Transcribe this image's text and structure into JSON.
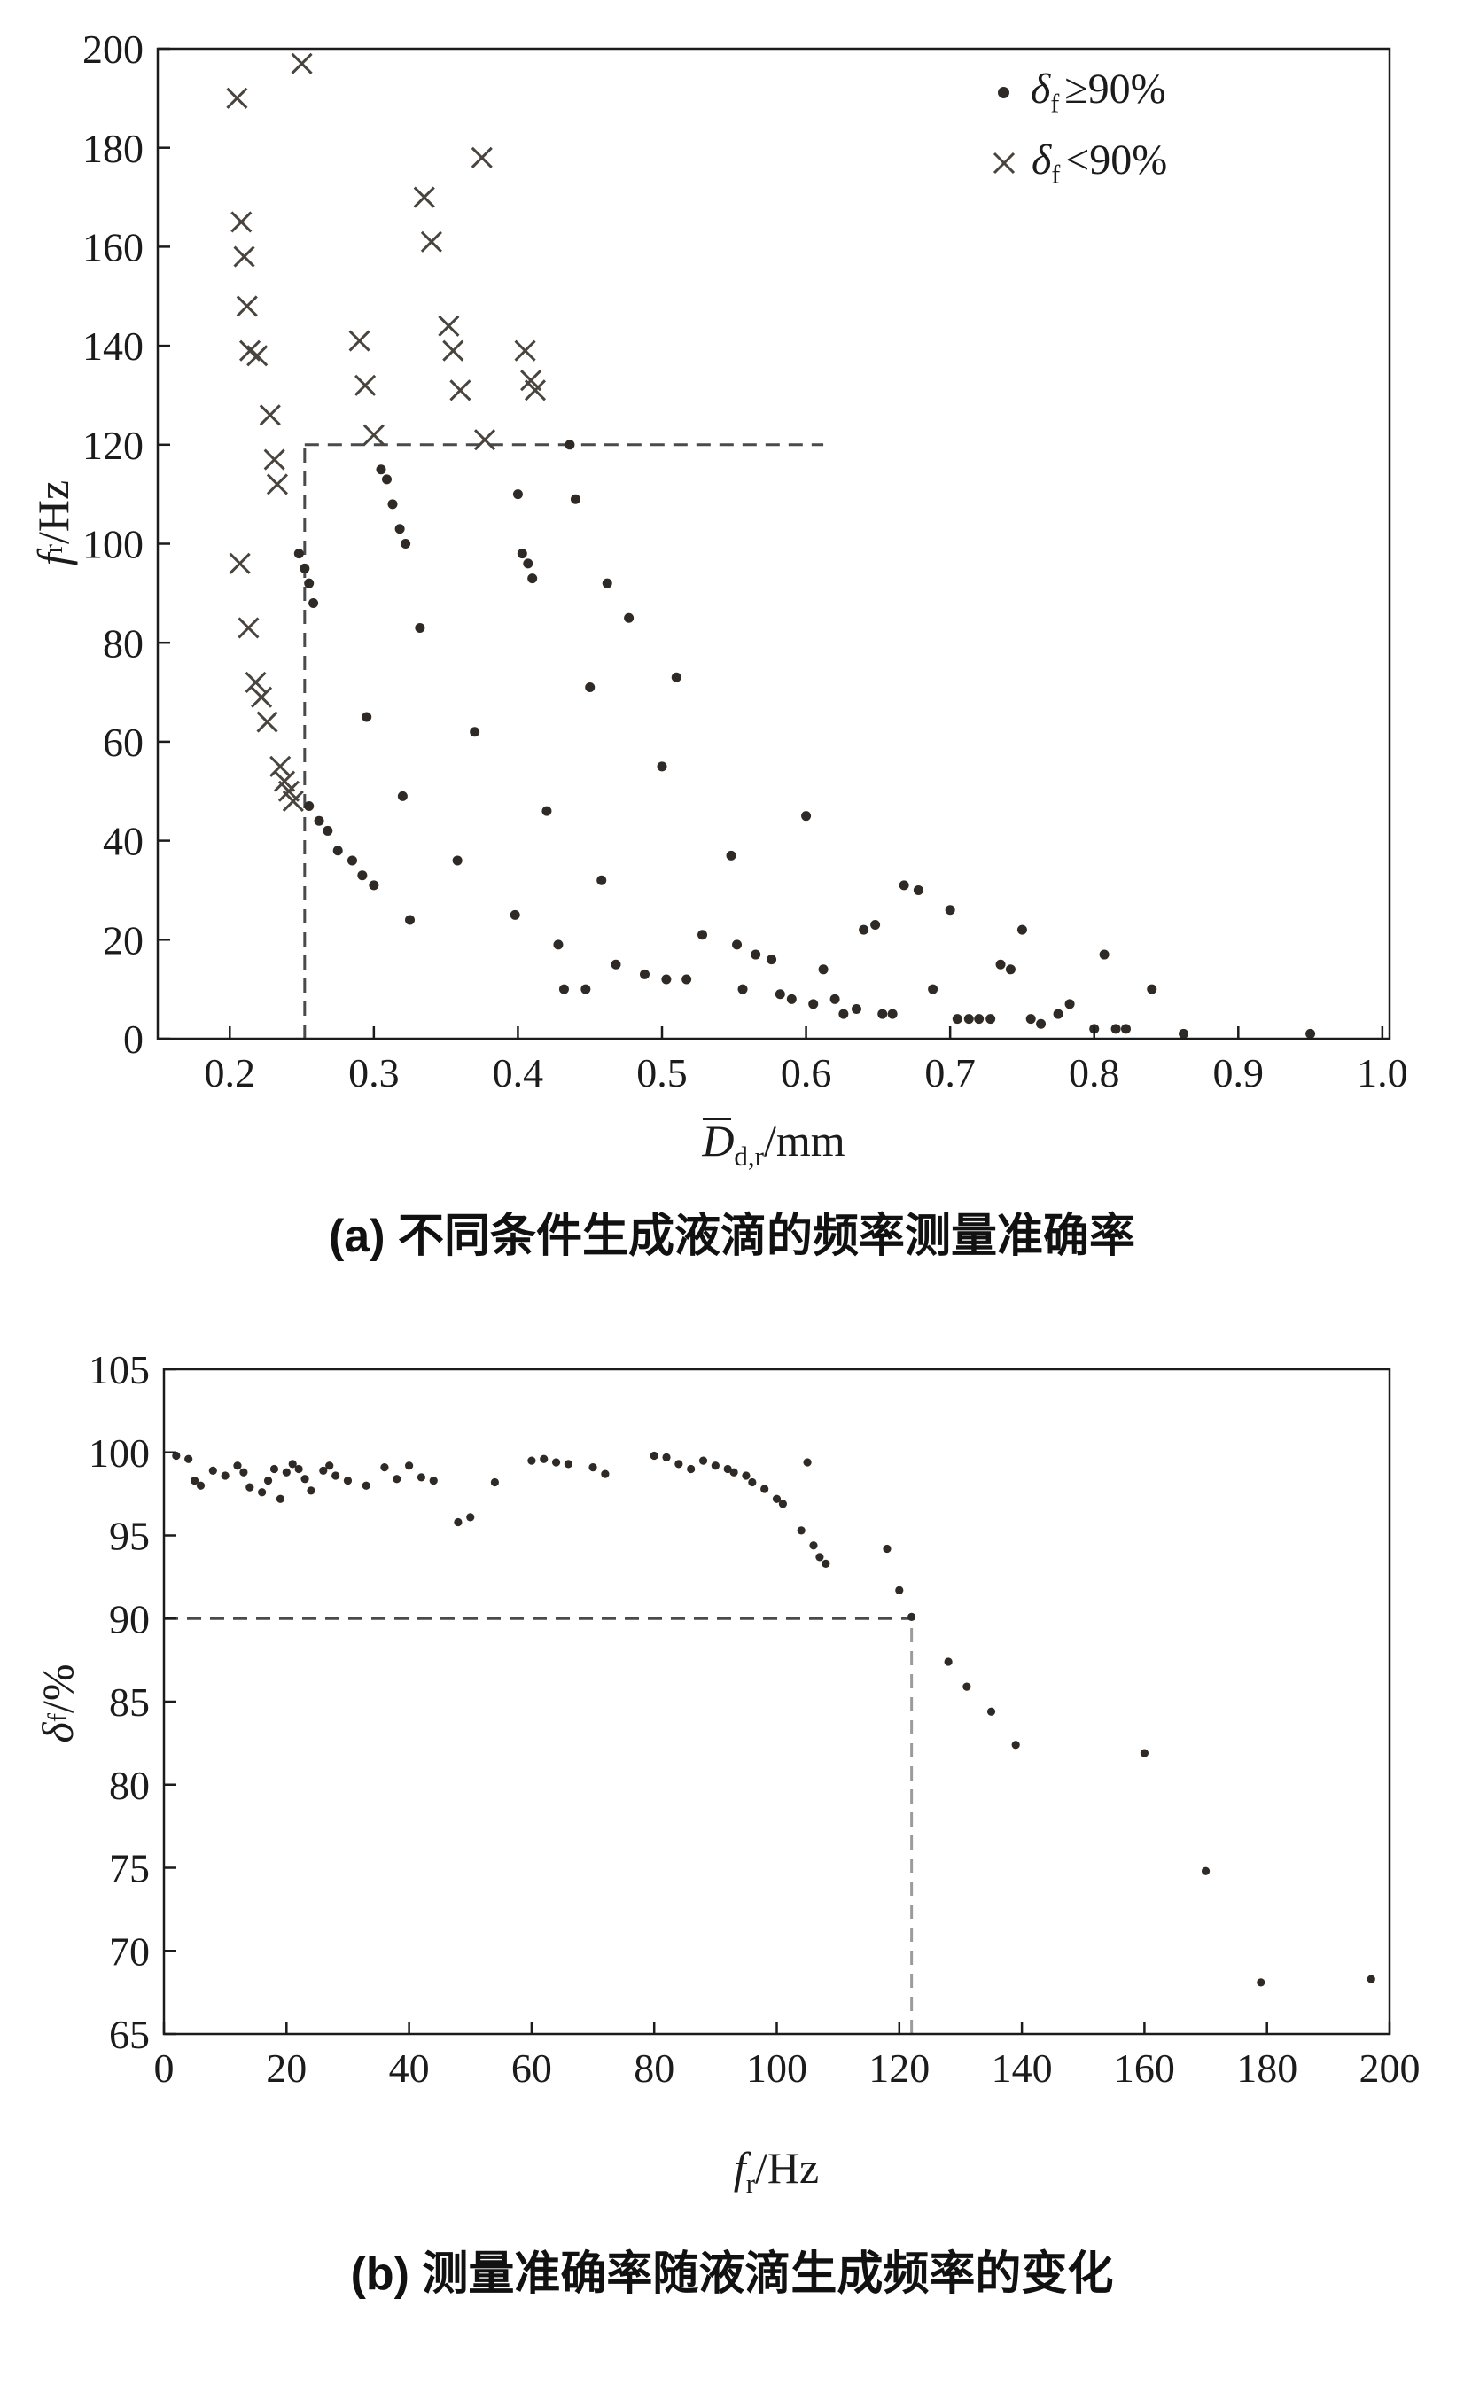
{
  "page": {
    "background": "#ffffff",
    "text_color": "#1b1b1b"
  },
  "chart_data": [
    {
      "id": "chart-a",
      "type": "scatter",
      "caption": "(a) 不同条件生成液滴的频率测量准确率",
      "xlabel": {
        "main": "D",
        "sub": "d,r",
        "unit": "/mm",
        "overbar": true
      },
      "ylabel": {
        "main": "f",
        "sub": "r",
        "unit": "/Hz"
      },
      "xlim": [
        0.15,
        1.005
      ],
      "ylim": [
        0,
        200
      ],
      "xticks": [
        0.2,
        0.3,
        0.4,
        0.5,
        0.6,
        0.7,
        0.8,
        0.9,
        1.0
      ],
      "xtick_labels": [
        "0.2",
        "0.3",
        "0.4",
        "0.5",
        "0.6",
        "0.7",
        "0.8",
        "0.9",
        "1.0"
      ],
      "yticks": [
        0,
        20,
        40,
        60,
        80,
        100,
        120,
        140,
        160,
        180,
        200
      ],
      "ytick_labels": [
        "0",
        "20",
        "40",
        "60",
        "80",
        "100",
        "120",
        "140",
        "160",
        "180",
        "200"
      ],
      "grid": false,
      "legend_position": "top-right",
      "legend": [
        {
          "marker": "dot",
          "sym": "δ",
          "sub": "f",
          "rest": "≥90%"
        },
        {
          "marker": "cross",
          "sym": "δ",
          "sub": "f",
          "rest": "<90%"
        }
      ],
      "series": [
        {
          "name": "delta_f_ge_90",
          "marker": "dot",
          "color": "#2f2a25",
          "points": [
            [
              0.248,
              98
            ],
            [
              0.252,
              95
            ],
            [
              0.255,
              92
            ],
            [
              0.258,
              88
            ],
            [
              0.255,
              47
            ],
            [
              0.262,
              44
            ],
            [
              0.268,
              42
            ],
            [
              0.275,
              38
            ],
            [
              0.285,
              36
            ],
            [
              0.292,
              33
            ],
            [
              0.3,
              31
            ],
            [
              0.295,
              65
            ],
            [
              0.305,
              115
            ],
            [
              0.309,
              113
            ],
            [
              0.313,
              108
            ],
            [
              0.318,
              103
            ],
            [
              0.322,
              100
            ],
            [
              0.32,
              49
            ],
            [
              0.325,
              24
            ],
            [
              0.332,
              83
            ],
            [
              0.358,
              36
            ],
            [
              0.37,
              62
            ],
            [
              0.398,
              25
            ],
            [
              0.4,
              110
            ],
            [
              0.403,
              98
            ],
            [
              0.407,
              96
            ],
            [
              0.41,
              93
            ],
            [
              0.42,
              46
            ],
            [
              0.428,
              19
            ],
            [
              0.432,
              10
            ],
            [
              0.436,
              120
            ],
            [
              0.44,
              109
            ],
            [
              0.447,
              10
            ],
            [
              0.45,
              71
            ],
            [
              0.458,
              32
            ],
            [
              0.462,
              92
            ],
            [
              0.468,
              15
            ],
            [
              0.477,
              85
            ],
            [
              0.488,
              13
            ],
            [
              0.5,
              55
            ],
            [
              0.503,
              12
            ],
            [
              0.51,
              73
            ],
            [
              0.517,
              12
            ],
            [
              0.528,
              21
            ],
            [
              0.548,
              37
            ],
            [
              0.552,
              19
            ],
            [
              0.556,
              10
            ],
            [
              0.565,
              17
            ],
            [
              0.576,
              16
            ],
            [
              0.582,
              9
            ],
            [
              0.59,
              8
            ],
            [
              0.6,
              45
            ],
            [
              0.605,
              7
            ],
            [
              0.612,
              14
            ],
            [
              0.62,
              8
            ],
            [
              0.626,
              5
            ],
            [
              0.635,
              6
            ],
            [
              0.64,
              22
            ],
            [
              0.648,
              23
            ],
            [
              0.653,
              5
            ],
            [
              0.66,
              5
            ],
            [
              0.668,
              31
            ],
            [
              0.678,
              30
            ],
            [
              0.688,
              10
            ],
            [
              0.7,
              26
            ],
            [
              0.705,
              4
            ],
            [
              0.713,
              4
            ],
            [
              0.72,
              4
            ],
            [
              0.728,
              4
            ],
            [
              0.735,
              15
            ],
            [
              0.742,
              14
            ],
            [
              0.75,
              22
            ],
            [
              0.756,
              4
            ],
            [
              0.763,
              3
            ],
            [
              0.775,
              5
            ],
            [
              0.783,
              7
            ],
            [
              0.8,
              2
            ],
            [
              0.807,
              17
            ],
            [
              0.815,
              2
            ],
            [
              0.822,
              2
            ],
            [
              0.84,
              10
            ],
            [
              0.862,
              1
            ],
            [
              0.95,
              1
            ]
          ]
        },
        {
          "name": "delta_f_lt_90",
          "marker": "cross",
          "color": "#4a443e",
          "points": [
            [
              0.205,
              190
            ],
            [
              0.208,
              165
            ],
            [
              0.21,
              158
            ],
            [
              0.212,
              148
            ],
            [
              0.207,
              96
            ],
            [
              0.213,
              83
            ],
            [
              0.214,
              139
            ],
            [
              0.219,
              138
            ],
            [
              0.218,
              72
            ],
            [
              0.222,
              69
            ],
            [
              0.226,
              64
            ],
            [
              0.228,
              126
            ],
            [
              0.231,
              117
            ],
            [
              0.233,
              112
            ],
            [
              0.235,
              55
            ],
            [
              0.238,
              52
            ],
            [
              0.241,
              50
            ],
            [
              0.244,
              48
            ],
            [
              0.25,
              197
            ],
            [
              0.29,
              141
            ],
            [
              0.294,
              132
            ],
            [
              0.3,
              122
            ],
            [
              0.335,
              170
            ],
            [
              0.34,
              161
            ],
            [
              0.352,
              144
            ],
            [
              0.355,
              139
            ],
            [
              0.36,
              131
            ],
            [
              0.375,
              178
            ],
            [
              0.377,
              121
            ],
            [
              0.405,
              139
            ],
            [
              0.409,
              133
            ],
            [
              0.412,
              131
            ]
          ]
        }
      ],
      "dashed_lines": [
        {
          "from": [
            0.252,
            120
          ],
          "to": [
            0.612,
            120
          ],
          "color": "#4a4a4a"
        },
        {
          "from": [
            0.252,
            0
          ],
          "to": [
            0.252,
            120
          ],
          "color": "#4a4a4a"
        }
      ]
    },
    {
      "id": "chart-b",
      "type": "scatter",
      "caption": "(b) 测量准确率随液滴生成频率的变化",
      "xlabel": {
        "main": "f",
        "sub": "r",
        "unit": "/Hz"
      },
      "ylabel": {
        "main": "δ",
        "sub": "f",
        "unit": "/%"
      },
      "xlim": [
        0,
        200
      ],
      "ylim": [
        65,
        105
      ],
      "xticks": [
        0,
        20,
        40,
        60,
        80,
        100,
        120,
        140,
        160,
        180,
        200
      ],
      "xtick_labels": [
        "0",
        "20",
        "40",
        "60",
        "80",
        "100",
        "120",
        "140",
        "160",
        "180",
        "200"
      ],
      "yticks": [
        65,
        70,
        75,
        80,
        85,
        90,
        95,
        100,
        105
      ],
      "ytick_labels": [
        "65",
        "70",
        "75",
        "80",
        "85",
        "90",
        "95",
        "100",
        "105"
      ],
      "grid": false,
      "legend": [],
      "series": [
        {
          "name": "accuracy_vs_frequency",
          "marker": "dot",
          "color": "#2f2a25",
          "points": [
            [
              2,
              99.8
            ],
            [
              4,
              99.6
            ],
            [
              5,
              98.3
            ],
            [
              6,
              98.0
            ],
            [
              8,
              98.9
            ],
            [
              10,
              98.6
            ],
            [
              12,
              99.2
            ],
            [
              13,
              98.8
            ],
            [
              14,
              97.9
            ],
            [
              16,
              97.6
            ],
            [
              17,
              98.3
            ],
            [
              18,
              99.0
            ],
            [
              19,
              97.2
            ],
            [
              20,
              98.8
            ],
            [
              21,
              99.3
            ],
            [
              22,
              99.0
            ],
            [
              23,
              98.4
            ],
            [
              24,
              97.7
            ],
            [
              26,
              98.9
            ],
            [
              27,
              99.2
            ],
            [
              28,
              98.6
            ],
            [
              30,
              98.3
            ],
            [
              33,
              98.0
            ],
            [
              36,
              99.1
            ],
            [
              38,
              98.4
            ],
            [
              40,
              99.2
            ],
            [
              42,
              98.5
            ],
            [
              44,
              98.3
            ],
            [
              48,
              95.8
            ],
            [
              50,
              96.1
            ],
            [
              54,
              98.2
            ],
            [
              60,
              99.5
            ],
            [
              62,
              99.6
            ],
            [
              64,
              99.4
            ],
            [
              66,
              99.3
            ],
            [
              70,
              99.1
            ],
            [
              72,
              98.7
            ],
            [
              80,
              99.8
            ],
            [
              82,
              99.7
            ],
            [
              84,
              99.3
            ],
            [
              86,
              99.0
            ],
            [
              88,
              99.5
            ],
            [
              90,
              99.2
            ],
            [
              92,
              99.0
            ],
            [
              93,
              98.8
            ],
            [
              95,
              98.6
            ],
            [
              96,
              98.2
            ],
            [
              98,
              97.8
            ],
            [
              100,
              97.2
            ],
            [
              101,
              96.9
            ],
            [
              104,
              95.3
            ],
            [
              105,
              99.4
            ],
            [
              106,
              94.4
            ],
            [
              107,
              93.7
            ],
            [
              108,
              93.3
            ],
            [
              118,
              94.2
            ],
            [
              120,
              91.7
            ],
            [
              122,
              90.1
            ],
            [
              128,
              87.4
            ],
            [
              131,
              85.9
            ],
            [
              135,
              84.4
            ],
            [
              139,
              82.4
            ],
            [
              160,
              81.9
            ],
            [
              170,
              74.8
            ],
            [
              179,
              68.1
            ],
            [
              197,
              68.3
            ]
          ]
        }
      ],
      "dashed_lines": [
        {
          "from": [
            0,
            90
          ],
          "to": [
            122,
            90
          ],
          "color": "#4a4a4a"
        },
        {
          "from": [
            122,
            65
          ],
          "to": [
            122,
            90
          ],
          "color": "#9b9b9b"
        }
      ]
    }
  ]
}
